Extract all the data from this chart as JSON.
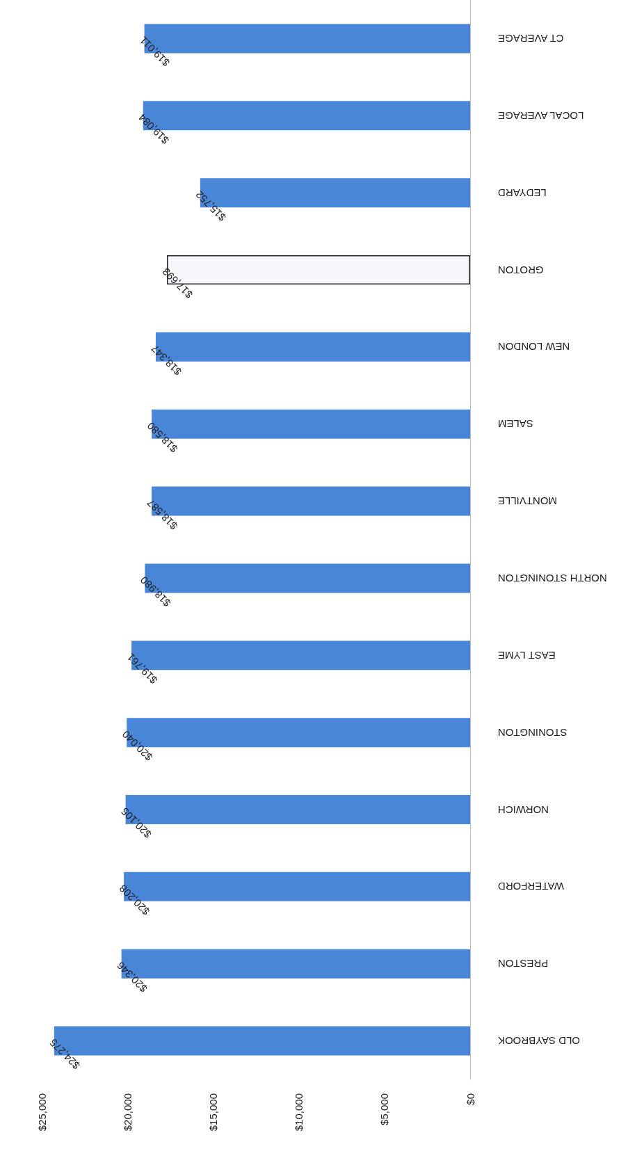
{
  "chart_data": {
    "type": "bar",
    "orientation": "horizontal",
    "categories": [
      "CT AVERAGE",
      "LOCAL AVERAGE",
      "LEDYARD",
      "GROTON",
      "NEW LONDON",
      "SALEM",
      "MONTVILLE",
      "NORTH STONINGTON",
      "EAST LYME",
      "STONINGTON",
      "NORWICH",
      "WATERFORD",
      "PRESTON",
      "OLD SAYBROOK"
    ],
    "values": [
      19011,
      19084,
      15752,
      17693,
      18347,
      18580,
      18587,
      18980,
      19761,
      20040,
      20105,
      20208,
      20346,
      24275
    ],
    "value_labels": [
      "$19,011",
      "$19,084",
      "$15,752",
      "$17,693",
      "$18,347",
      "$18,580",
      "$18,587",
      "$18,980",
      "$19,761",
      "$20,040",
      "$20,105",
      "$20,208",
      "$20,346",
      "$24,275"
    ],
    "colors": [
      "#4a86d8",
      "#4a86d8",
      "#4a86d8",
      "#f7f7fb",
      "#4a86d8",
      "#4a86d8",
      "#4a86d8",
      "#4a86d8",
      "#4a86d8",
      "#4a86d8",
      "#4a86d8",
      "#4a86d8",
      "#4a86d8",
      "#4a86d8"
    ],
    "xlim": [
      25000,
      0
    ],
    "xticks": [
      {
        "value": 0,
        "label": "$0"
      },
      {
        "value": 5000,
        "label": "$5,000"
      },
      {
        "value": 10000,
        "label": "$10,000"
      },
      {
        "value": 15000,
        "label": "$15,000"
      },
      {
        "value": 20000,
        "label": "$20,000"
      },
      {
        "value": 25000,
        "label": "$25,000"
      }
    ],
    "grid": false
  }
}
